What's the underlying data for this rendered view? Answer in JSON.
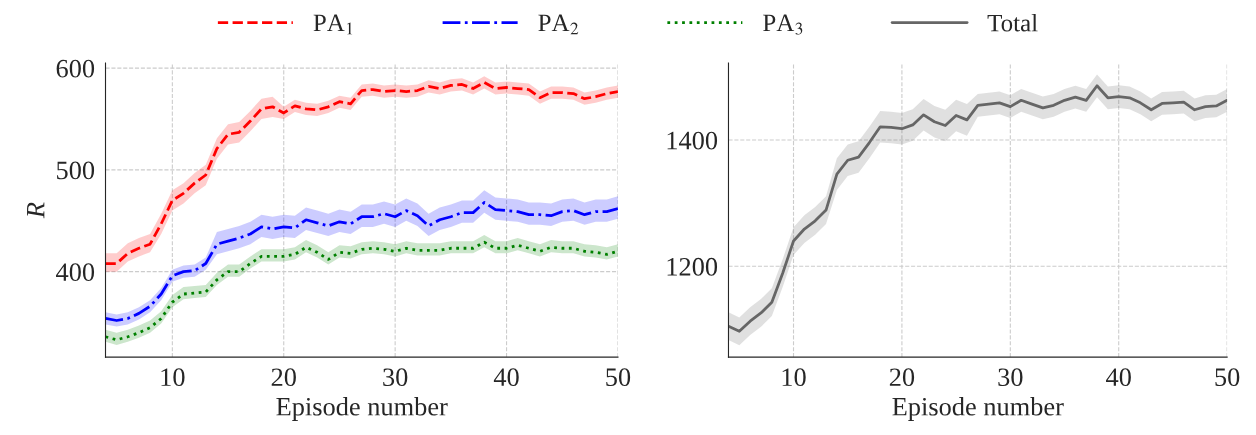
{
  "chart_data": [
    {
      "type": "line",
      "xlabel": "Episode number",
      "ylabel": "R",
      "xlim": [
        4,
        50
      ],
      "xticks": [
        10,
        20,
        30,
        40,
        50
      ],
      "ylim": [
        316,
        605
      ],
      "yticks": [
        400,
        500,
        600
      ],
      "grid": true,
      "legend": "top",
      "x": [
        4,
        5,
        6,
        7,
        8,
        9,
        10,
        11,
        12,
        13,
        14,
        15,
        16,
        17,
        18,
        19,
        20,
        21,
        22,
        23,
        24,
        25,
        26,
        27,
        28,
        29,
        30,
        31,
        32,
        33,
        34,
        35,
        36,
        37,
        38,
        39,
        40,
        41,
        42,
        43,
        44,
        45,
        46,
        47,
        48,
        49,
        50
      ],
      "series": [
        {
          "name": "PA$_{1}$",
          "color": "#ff0000",
          "line_style": "dashed",
          "values": [
            408,
            408,
            418,
            423,
            427,
            447,
            470,
            477,
            487,
            495,
            521,
            535,
            537,
            548,
            560,
            562,
            556,
            563,
            560,
            559,
            562,
            567,
            565,
            578,
            579,
            577,
            578,
            577,
            578,
            582,
            580,
            583,
            584,
            580,
            586,
            580,
            581,
            580,
            579,
            571,
            576,
            576,
            575,
            570,
            572,
            575,
            577
          ],
          "lower": [
            400,
            400,
            410,
            415,
            419,
            437,
            460,
            467,
            477,
            485,
            511,
            525,
            527,
            538,
            550,
            552,
            550,
            557,
            554,
            553,
            556,
            561,
            559,
            572,
            573,
            571,
            572,
            571,
            572,
            576,
            574,
            577,
            578,
            574,
            580,
            574,
            575,
            574,
            573,
            565,
            570,
            570,
            569,
            564,
            566,
            569,
            571
          ],
          "upper": [
            418,
            418,
            428,
            433,
            437,
            457,
            480,
            487,
            497,
            505,
            531,
            545,
            547,
            558,
            570,
            572,
            562,
            569,
            566,
            565,
            568,
            573,
            571,
            584,
            585,
            583,
            584,
            583,
            584,
            588,
            586,
            589,
            590,
            586,
            592,
            586,
            587,
            586,
            585,
            577,
            582,
            582,
            581,
            576,
            578,
            581,
            583
          ]
        },
        {
          "name": "PA$_{2}$",
          "color": "#0000ff",
          "line_style": "dashdot",
          "values": [
            354,
            352,
            354,
            359,
            366,
            378,
            396,
            400,
            401,
            408,
            427,
            430,
            433,
            437,
            444,
            442,
            444,
            443,
            451,
            448,
            445,
            449,
            447,
            454,
            454,
            457,
            454,
            460,
            455,
            445,
            451,
            454,
            458,
            458,
            468,
            461,
            460,
            459,
            456,
            456,
            455,
            459,
            460,
            456,
            459,
            459,
            462
          ],
          "lower": [
            348,
            346,
            348,
            353,
            360,
            372,
            390,
            394,
            395,
            402,
            417,
            420,
            423,
            427,
            434,
            432,
            434,
            433,
            441,
            438,
            435,
            439,
            437,
            444,
            444,
            447,
            444,
            450,
            445,
            435,
            441,
            444,
            448,
            448,
            458,
            451,
            450,
            449,
            446,
            446,
            445,
            449,
            450,
            446,
            449,
            449,
            452
          ],
          "upper": [
            360,
            358,
            360,
            365,
            372,
            384,
            402,
            406,
            407,
            414,
            439,
            442,
            445,
            449,
            456,
            454,
            456,
            455,
            463,
            460,
            457,
            461,
            459,
            466,
            466,
            469,
            466,
            472,
            467,
            457,
            463,
            466,
            470,
            470,
            480,
            473,
            472,
            471,
            468,
            468,
            467,
            471,
            472,
            468,
            471,
            471,
            474
          ]
        },
        {
          "name": "PA$_{3}$",
          "color": "#008000",
          "line_style": "dotted",
          "values": [
            336,
            333,
            336,
            340,
            345,
            354,
            370,
            378,
            379,
            380,
            392,
            400,
            400,
            408,
            415,
            415,
            415,
            417,
            424,
            419,
            412,
            419,
            418,
            422,
            423,
            422,
            420,
            423,
            421,
            421,
            421,
            423,
            423,
            423,
            429,
            423,
            423,
            426,
            423,
            420,
            424,
            423,
            423,
            420,
            419,
            417,
            420
          ],
          "lower": [
            331,
            328,
            331,
            335,
            340,
            349,
            365,
            373,
            374,
            375,
            387,
            395,
            395,
            403,
            410,
            410,
            410,
            412,
            419,
            414,
            407,
            414,
            413,
            417,
            418,
            417,
            415,
            418,
            416,
            416,
            416,
            418,
            418,
            418,
            424,
            418,
            418,
            421,
            418,
            415,
            419,
            418,
            418,
            415,
            414,
            412,
            415
          ],
          "upper": [
            343,
            340,
            343,
            347,
            352,
            361,
            377,
            385,
            386,
            387,
            399,
            407,
            407,
            415,
            422,
            422,
            422,
            424,
            431,
            426,
            419,
            426,
            425,
            429,
            430,
            429,
            427,
            430,
            428,
            428,
            428,
            430,
            430,
            430,
            436,
            430,
            430,
            433,
            430,
            427,
            431,
            430,
            430,
            427,
            426,
            424,
            427
          ]
        }
      ]
    },
    {
      "type": "line",
      "xlabel": "Episode number",
      "xlim": [
        4,
        50
      ],
      "xticks": [
        10,
        20,
        30,
        40,
        50
      ],
      "ylim": [
        1056,
        1522
      ],
      "yticks": [
        1200,
        1400
      ],
      "grid": true,
      "legend": "top",
      "x": [
        4,
        5,
        6,
        7,
        8,
        9,
        10,
        11,
        12,
        13,
        14,
        15,
        16,
        17,
        18,
        19,
        20,
        21,
        22,
        23,
        24,
        25,
        26,
        27,
        28,
        29,
        30,
        31,
        32,
        33,
        34,
        35,
        36,
        37,
        38,
        39,
        40,
        41,
        42,
        43,
        44,
        45,
        46,
        47,
        48,
        49,
        50
      ],
      "series": [
        {
          "name": "Total",
          "color": "#666666",
          "line_style": "solid",
          "values": [
            1105,
            1097,
            1113,
            1126,
            1143,
            1189,
            1240,
            1259,
            1272,
            1289,
            1346,
            1368,
            1373,
            1396,
            1421,
            1420,
            1418,
            1424,
            1440,
            1429,
            1423,
            1439,
            1432,
            1455,
            1457,
            1459,
            1453,
            1463,
            1457,
            1451,
            1455,
            1463,
            1468,
            1463,
            1486,
            1467,
            1469,
            1467,
            1459,
            1448,
            1458,
            1459,
            1460,
            1448,
            1453,
            1454,
            1463
          ],
          "lower": [
            1083,
            1075,
            1091,
            1104,
            1121,
            1167,
            1218,
            1237,
            1250,
            1267,
            1321,
            1343,
            1348,
            1371,
            1396,
            1395,
            1393,
            1399,
            1415,
            1404,
            1398,
            1414,
            1407,
            1437,
            1439,
            1441,
            1435,
            1445,
            1439,
            1433,
            1437,
            1445,
            1450,
            1445,
            1468,
            1449,
            1451,
            1449,
            1441,
            1430,
            1440,
            1441,
            1442,
            1430,
            1435,
            1436,
            1445
          ],
          "upper": [
            1127,
            1119,
            1135,
            1148,
            1165,
            1211,
            1262,
            1281,
            1294,
            1311,
            1371,
            1393,
            1398,
            1421,
            1446,
            1445,
            1443,
            1449,
            1465,
            1454,
            1448,
            1464,
            1457,
            1473,
            1475,
            1477,
            1471,
            1481,
            1475,
            1469,
            1473,
            1481,
            1486,
            1481,
            1504,
            1485,
            1487,
            1485,
            1477,
            1466,
            1476,
            1477,
            1478,
            1466,
            1471,
            1472,
            1481
          ]
        }
      ]
    }
  ]
}
